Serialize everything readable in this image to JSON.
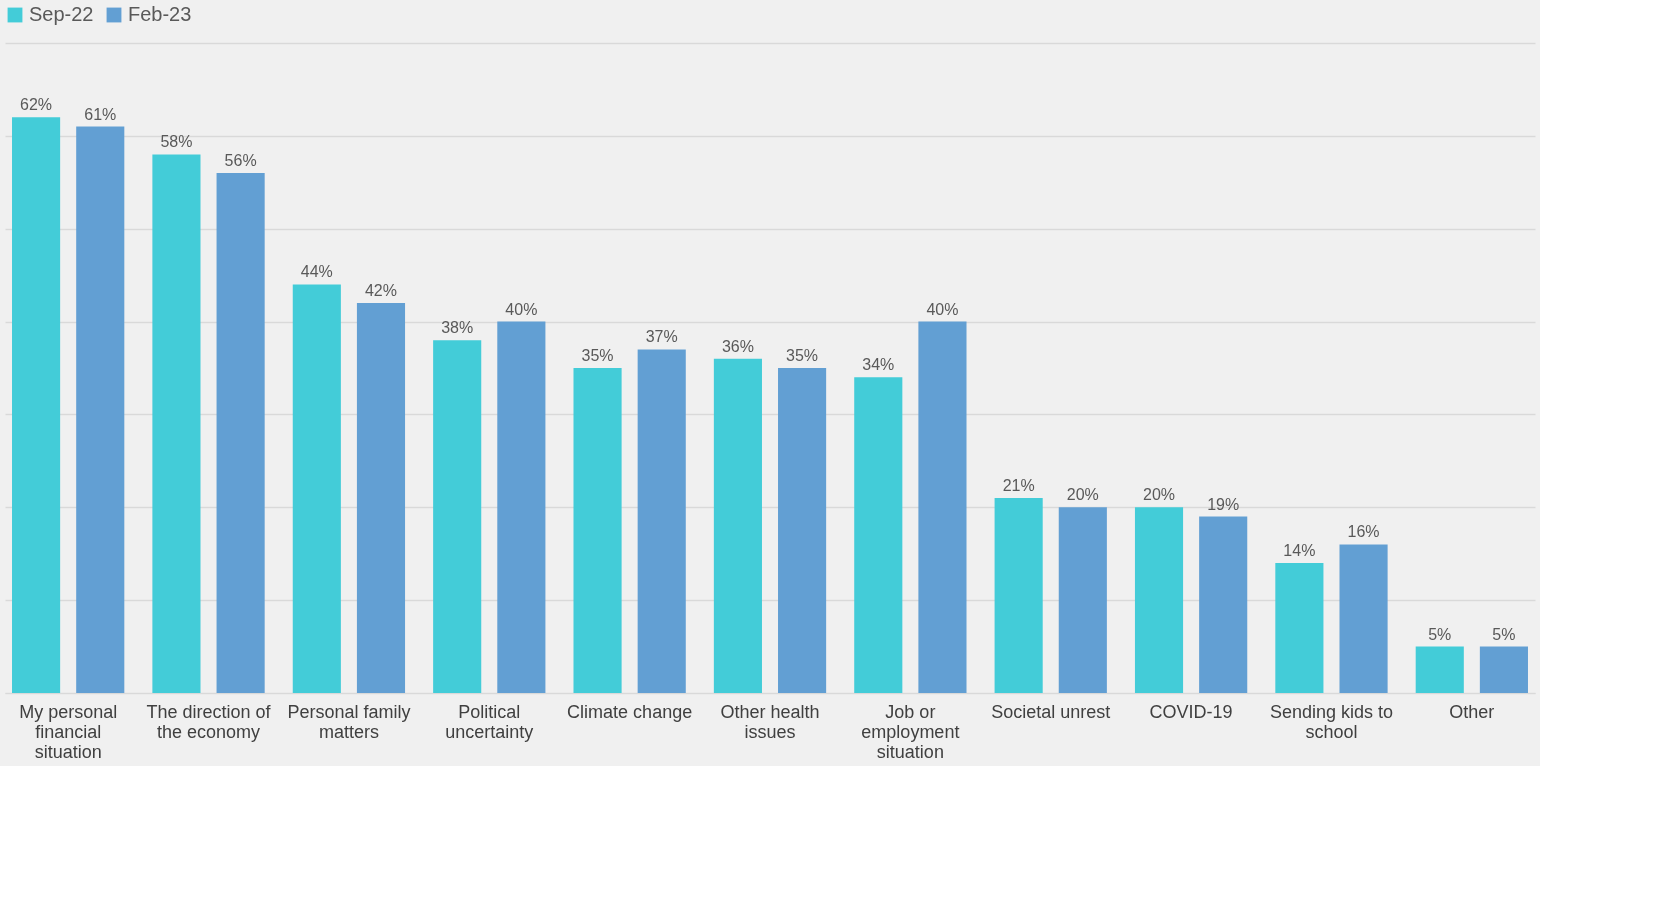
{
  "chart_data": {
    "type": "bar",
    "categories": [
      "My personal financial situation",
      "The direction of the economy",
      "Personal family matters",
      "Political uncertainty",
      "Climate change",
      "Other health issues",
      "Job or employment situation",
      "Societal unrest",
      "COVID-19",
      "Sending kids to school",
      "Other"
    ],
    "series": [
      {
        "name": "Sep-22",
        "color": "#43ccd8",
        "values": [
          62,
          58,
          44,
          38,
          35,
          36,
          34,
          21,
          20,
          14,
          5
        ],
        "value_labels": [
          "62%",
          "58%",
          "44%",
          "38%",
          "35%",
          "36%",
          "34%",
          "21%",
          "20%",
          "14%",
          "5%"
        ]
      },
      {
        "name": "Feb-23",
        "color": "#629fd3",
        "values": [
          61,
          56,
          42,
          40,
          37,
          35,
          40,
          20,
          19,
          16,
          5
        ],
        "value_labels": [
          "61%",
          "56%",
          "42%",
          "40%",
          "37%",
          "35%",
          "40%",
          "20%",
          "19%",
          "16%",
          "5%"
        ]
      }
    ],
    "ylim": [
      0,
      70
    ],
    "yticks": [
      {
        "value": 0,
        "label": null
      },
      {
        "value": 10,
        "label": null
      },
      {
        "value": 20,
        "label": null
      },
      {
        "value": 30,
        "label": null
      },
      {
        "value": 40,
        "label": null
      },
      {
        "value": 50,
        "label": null
      },
      {
        "value": 60,
        "label": null
      },
      {
        "value": 70,
        "label": null
      }
    ],
    "grid": "y",
    "legend": "top",
    "tick_labels": "x"
  }
}
